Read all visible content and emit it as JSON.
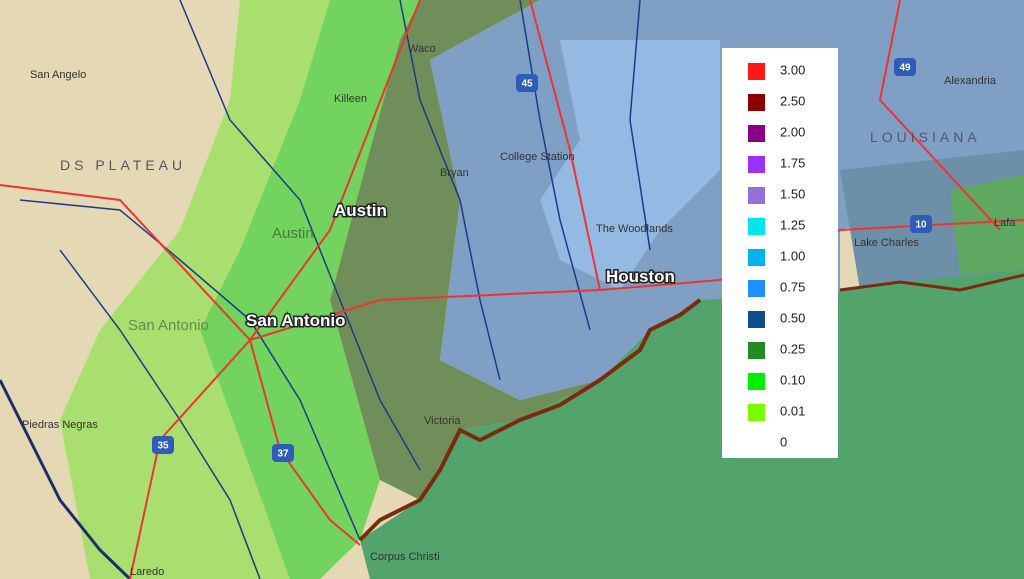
{
  "map": {
    "major_cities": [
      "Austin",
      "San Antonio",
      "Houston"
    ],
    "places": [
      "San Angelo",
      "Waco",
      "Killeen",
      "Bryan",
      "College Station",
      "The Woodlands",
      "Victoria",
      "Corpus Christi",
      "Laredo",
      "Piedras Negras",
      "Lake Charles",
      "Alexandria",
      "Lafa",
      "Austin",
      "San Antonio"
    ],
    "regions": [
      "LOUISIANA",
      "DS PLATEAU"
    ],
    "highways": [
      "45",
      "49",
      "10",
      "35",
      "37"
    ],
    "legend": [
      {
        "label": "3.00",
        "color": "#ff1a1a"
      },
      {
        "label": "2.50",
        "color": "#8b0000"
      },
      {
        "label": "2.00",
        "color": "#8b008b"
      },
      {
        "label": "1.75",
        "color": "#9b30ff"
      },
      {
        "label": "1.50",
        "color": "#9370db"
      },
      {
        "label": "1.25",
        "color": "#00e5ee"
      },
      {
        "label": "1.00",
        "color": "#00b2ee"
      },
      {
        "label": "0.75",
        "color": "#1e90ff"
      },
      {
        "label": "0.50",
        "color": "#104e8b"
      },
      {
        "label": "0.25",
        "color": "#228b22"
      },
      {
        "label": "0.10",
        "color": "#00ee00"
      },
      {
        "label": "0.01",
        "color": "#7cfc00"
      },
      {
        "label": "0",
        "color": null
      }
    ]
  }
}
